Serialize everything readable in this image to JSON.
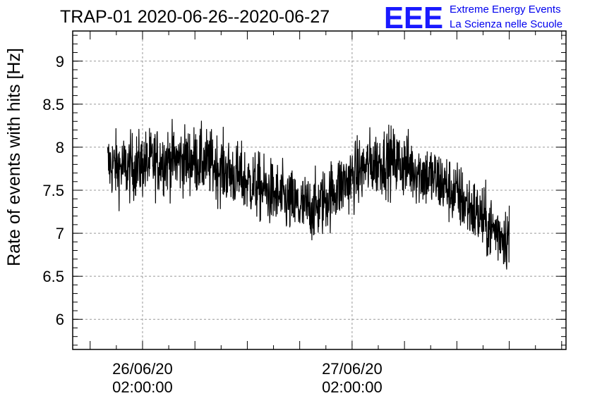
{
  "chart_data": {
    "type": "line",
    "title": "TRAP-01 2020-06-26--2020-06-27",
    "ylabel": "Rate of events with hits [Hz]",
    "xlabel": "",
    "ylim": [
      5.65,
      9.35
    ],
    "yticks": [
      6,
      6.5,
      7,
      7.5,
      8,
      8.5,
      9
    ],
    "ytick_labels": [
      "6",
      "6.5",
      "7",
      "7.5",
      "8",
      "8.5",
      "9"
    ],
    "xlim": [
      "2020-06-25T18:00:00",
      "2020-06-28T02:30:00"
    ],
    "xticks": [
      {
        "at": "2020-06-26T02:00:00",
        "line1": "26/06/20",
        "line2": "02:00:00"
      },
      {
        "at": "2020-06-27T02:00:00",
        "line1": "27/06/20",
        "line2": "02:00:00"
      }
    ],
    "grid": true,
    "series": [
      {
        "x": [
          "2020-06-25T22:00:00",
          "2020-06-26T00:00:00",
          "2020-06-26T02:00:00",
          "2020-06-26T04:00:00",
          "2020-06-26T06:00:00",
          "2020-06-26T08:00:00",
          "2020-06-26T10:00:00",
          "2020-06-26T12:00:00",
          "2020-06-26T14:00:00",
          "2020-06-26T16:00:00",
          "2020-06-26T18:00:00",
          "2020-06-26T20:00:00",
          "2020-06-26T22:00:00",
          "2020-06-27T00:00:00",
          "2020-06-27T02:00:00",
          "2020-06-27T04:00:00",
          "2020-06-27T06:00:00",
          "2020-06-27T08:00:00",
          "2020-06-27T10:00:00",
          "2020-06-27T12:00:00",
          "2020-06-27T14:00:00",
          "2020-06-27T16:00:00",
          "2020-06-27T18:00:00",
          "2020-06-27T20:00:00"
        ],
        "values": [
          7.8,
          7.75,
          7.8,
          7.85,
          7.85,
          7.85,
          7.8,
          7.7,
          7.6,
          7.5,
          7.4,
          7.3,
          7.3,
          7.5,
          7.65,
          7.8,
          7.85,
          7.8,
          7.7,
          7.6,
          7.45,
          7.25,
          7.05,
          6.95
        ],
        "noise_amplitude": 0.35,
        "color": "#000000"
      }
    ]
  },
  "brand": {
    "logo": "EEE",
    "line1": "Extreme Energy Events",
    "line2": "La Scienza nelle Scuole",
    "color": "#0000ee"
  }
}
